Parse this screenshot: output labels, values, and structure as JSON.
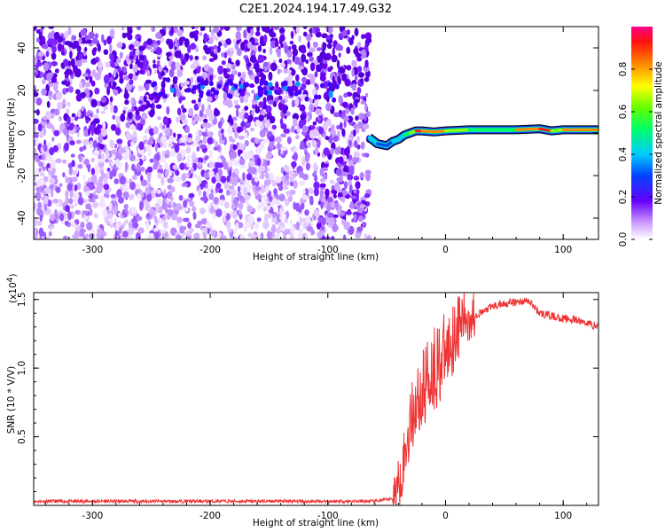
{
  "title": "C2E1.2024.194.17.49.G32",
  "chart_data": [
    {
      "type": "heatmap",
      "xlabel": "Height of straight line (km)",
      "ylabel": "Frequency (Hz)",
      "xlim": [
        -350,
        130
      ],
      "ylim": [
        -50,
        50
      ],
      "xticks": [
        -300,
        -200,
        -100,
        0,
        100
      ],
      "yticks": [
        -40,
        -20,
        0,
        20,
        40
      ],
      "colorbar": {
        "label": "Normalized spectral amplitude",
        "ticks": [
          "0.0",
          "0.2",
          "0.4",
          "0.6",
          "0.8"
        ],
        "range": [
          0,
          1
        ]
      },
      "noise_region_x": [
        -350,
        -65
      ],
      "signal_trace": {
        "x": [
          -65,
          -58,
          -50,
          -45,
          -40,
          -35,
          -30,
          -25,
          -20,
          -10,
          0,
          20,
          60,
          80,
          90,
          100,
          130
        ],
        "y": [
          -2,
          -5,
          -6,
          -4,
          -3,
          -1,
          0,
          1,
          1,
          0.5,
          1,
          1.5,
          1.5,
          2,
          1,
          1.5,
          1.5
        ],
        "amplitude": [
          0.5,
          0.35,
          0.4,
          0.45,
          0.5,
          0.55,
          0.75,
          0.95,
          0.9,
          0.85,
          0.7,
          0.6,
          0.85,
          0.95,
          0.7,
          0.85,
          0.8
        ]
      }
    },
    {
      "type": "line",
      "xlabel": "Height of straight line (km)",
      "ylabel": "SNR (10 * V/V)",
      "scale_label": "(x10",
      "scale_exponent": "4",
      "xlim": [
        -350,
        130
      ],
      "ylim": [
        0,
        1.55
      ],
      "xticks": [
        -300,
        -200,
        -100,
        0,
        100
      ],
      "yticks": [
        "0.5",
        "1.0",
        "1.5"
      ],
      "ytick_values": [
        0.5,
        1.0,
        1.5
      ],
      "color": "#ee3333",
      "x": [
        -350,
        -300,
        -200,
        -100,
        -60,
        -45,
        -40,
        -35,
        -30,
        -25,
        -20,
        -15,
        -10,
        -5,
        0,
        5,
        10,
        15,
        20,
        30,
        40,
        50,
        60,
        70,
        75,
        80,
        90,
        100,
        110,
        120,
        130
      ],
      "y": [
        0.03,
        0.03,
        0.03,
        0.03,
        0.03,
        0.05,
        0.15,
        0.35,
        0.6,
        0.75,
        0.8,
        0.95,
        1.0,
        1.05,
        1.1,
        1.2,
        1.3,
        1.35,
        1.38,
        1.4,
        1.45,
        1.47,
        1.48,
        1.49,
        1.45,
        1.4,
        1.38,
        1.36,
        1.35,
        1.33,
        1.3
      ]
    }
  ]
}
